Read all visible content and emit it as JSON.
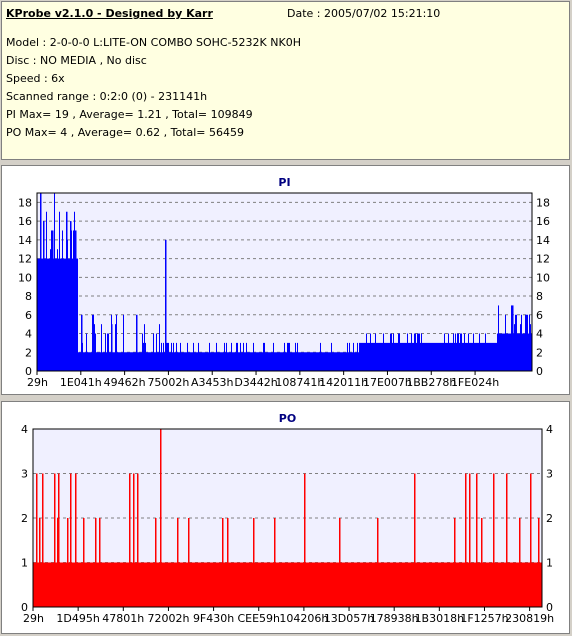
{
  "info": {
    "app_title": "KProbe v2.1.0 - Designed by Karr",
    "date": "Date : 2005/07/02 15:21:10",
    "lines": [
      "Model : 2-0-0-0 L:LITE-ON COMBO SOHC-5232K NK0H",
      "Disc : NO MEDIA , No disc",
      "Speed : 6x",
      "Scanned range : 0:2:0 (0) - 231141h",
      "PI Max= 19 , Average= 1.21 , Total= 109849",
      "PO Max= 4 , Average= 0.62 , Total= 56459"
    ]
  },
  "colors": {
    "pi": "#0000ff",
    "po": "#ff0000",
    "plot_bg": "#f0f0ff",
    "title": "#000080"
  },
  "chart_data": [
    {
      "type": "bar",
      "title": "PI",
      "ylim": [
        0,
        19
      ],
      "yticks": [
        0,
        2,
        4,
        6,
        8,
        10,
        12,
        14,
        16,
        18
      ],
      "xtick_labels": [
        "29h",
        "1E041h",
        "49462h",
        "75002h",
        "A3453h",
        "D3442h",
        "108741h",
        "142011h",
        "17E007h",
        "1BB278h",
        "1FE024h"
      ],
      "grid": true,
      "dense_segments": [
        {
          "x_from": 0.0,
          "x_to": 0.083,
          "baseline": 12,
          "peak": 19
        },
        {
          "x_from": 0.083,
          "x_to": 0.25,
          "baseline": 2,
          "peak": 6
        },
        {
          "x_from": 0.25,
          "x_to": 0.65,
          "baseline": 2,
          "peak": 3
        },
        {
          "x_from": 0.65,
          "x_to": 0.93,
          "baseline": 3,
          "peak": 4
        },
        {
          "x_from": 0.93,
          "x_to": 1.0,
          "baseline": 4,
          "peak": 7
        }
      ],
      "spikes": [
        {
          "x": 0.007,
          "value": 19
        },
        {
          "x": 0.013,
          "value": 16
        },
        {
          "x": 0.03,
          "value": 15
        },
        {
          "x": 0.058,
          "value": 17
        },
        {
          "x": 0.066,
          "value": 16
        },
        {
          "x": 0.077,
          "value": 15
        },
        {
          "x": 0.088,
          "value": 6
        },
        {
          "x": 0.15,
          "value": 5
        },
        {
          "x": 0.199,
          "value": 6
        },
        {
          "x": 0.259,
          "value": 14
        },
        {
          "x": 0.96,
          "value": 7
        },
        {
          "x": 0.985,
          "value": 6
        }
      ]
    },
    {
      "type": "bar",
      "title": "PO",
      "ylim": [
        0,
        4
      ],
      "yticks": [
        0,
        1,
        2,
        3,
        4
      ],
      "xtick_labels": [
        "29h",
        "1D495h",
        "47801h",
        "72002h",
        "9F430h",
        "CEE59h",
        "104206h",
        "13D057h",
        "178938h",
        "1B3018h",
        "1F1257h",
        "230819h"
      ],
      "grid": true,
      "baseline_value": 1,
      "spikes": [
        {
          "x": 0.006,
          "value": 3
        },
        {
          "x": 0.012,
          "value": 2
        },
        {
          "x": 0.018,
          "value": 3
        },
        {
          "x": 0.042,
          "value": 3
        },
        {
          "x": 0.048,
          "value": 2
        },
        {
          "x": 0.05,
          "value": 3
        },
        {
          "x": 0.066,
          "value": 2
        },
        {
          "x": 0.072,
          "value": 3
        },
        {
          "x": 0.083,
          "value": 3
        },
        {
          "x": 0.099,
          "value": 2
        },
        {
          "x": 0.121,
          "value": 2
        },
        {
          "x": 0.13,
          "value": 2
        },
        {
          "x": 0.189,
          "value": 3
        },
        {
          "x": 0.197,
          "value": 3
        },
        {
          "x": 0.204,
          "value": 3
        },
        {
          "x": 0.24,
          "value": 2
        },
        {
          "x": 0.25,
          "value": 4
        },
        {
          "x": 0.282,
          "value": 2
        },
        {
          "x": 0.304,
          "value": 2
        },
        {
          "x": 0.372,
          "value": 2
        },
        {
          "x": 0.381,
          "value": 2
        },
        {
          "x": 0.432,
          "value": 2
        },
        {
          "x": 0.474,
          "value": 2
        },
        {
          "x": 0.533,
          "value": 3
        },
        {
          "x": 0.601,
          "value": 2
        },
        {
          "x": 0.676,
          "value": 2
        },
        {
          "x": 0.749,
          "value": 3
        },
        {
          "x": 0.828,
          "value": 2
        },
        {
          "x": 0.848,
          "value": 3
        },
        {
          "x": 0.856,
          "value": 3
        },
        {
          "x": 0.87,
          "value": 3
        },
        {
          "x": 0.88,
          "value": 2
        },
        {
          "x": 0.903,
          "value": 3
        },
        {
          "x": 0.93,
          "value": 3
        },
        {
          "x": 0.955,
          "value": 2
        },
        {
          "x": 0.976,
          "value": 3
        },
        {
          "x": 0.992,
          "value": 2
        }
      ]
    }
  ]
}
